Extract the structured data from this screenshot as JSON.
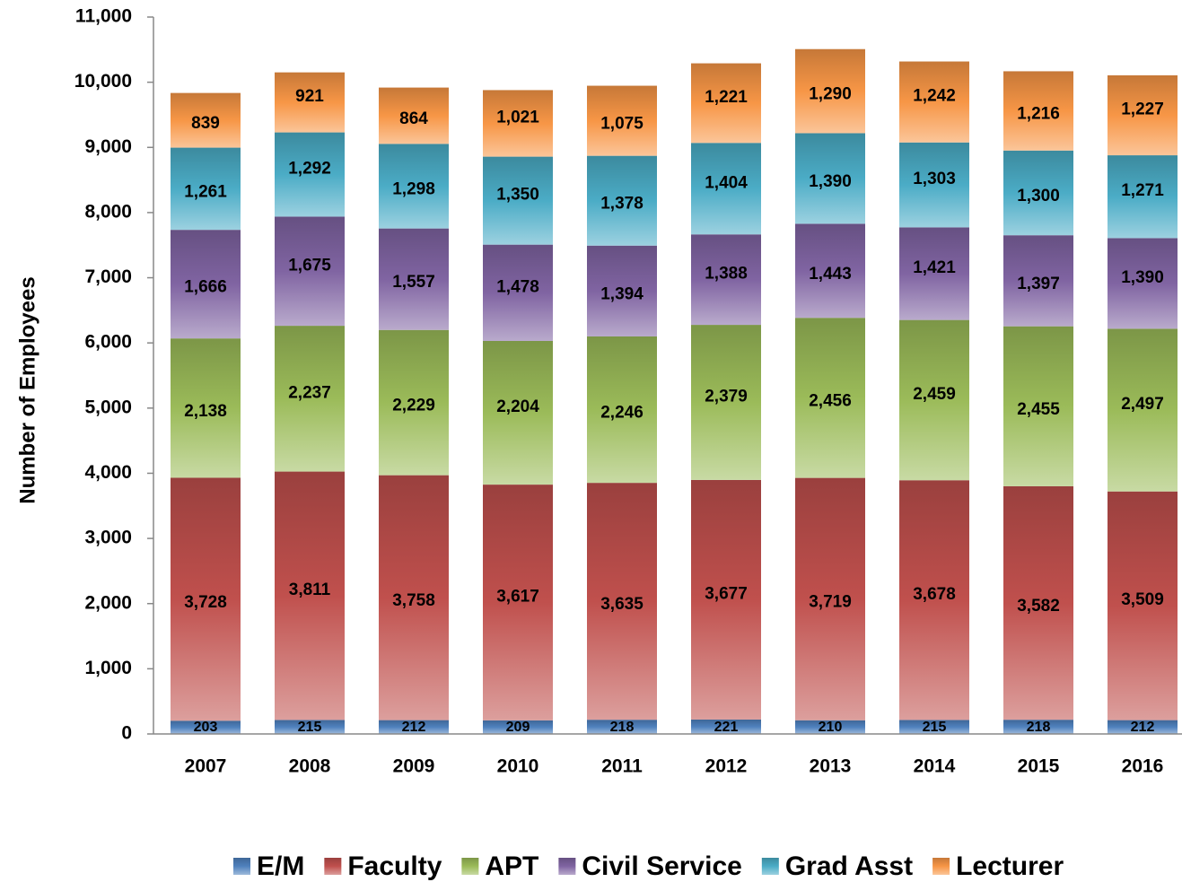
{
  "chart_data": {
    "type": "stacked_bar",
    "y_label": "Number of Employees",
    "categories": [
      "2007",
      "2008",
      "2009",
      "2010",
      "2011",
      "2012",
      "2013",
      "2014",
      "2015",
      "2016"
    ],
    "series": [
      {
        "name": "E/M",
        "color": "#4f81bd",
        "values": [
          203,
          215,
          212,
          209,
          218,
          221,
          210,
          215,
          218,
          212
        ]
      },
      {
        "name": "Faculty",
        "color": "#c0504d",
        "values": [
          3728,
          3811,
          3758,
          3617,
          3635,
          3677,
          3719,
          3678,
          3582,
          3509
        ],
        "value_labels": [
          "3,728",
          "3,811",
          "3,758",
          "3,617",
          "3,635",
          "3,677",
          "3,719",
          "3,678",
          "3,582",
          "3,509"
        ]
      },
      {
        "name": "APT",
        "color": "#9bbb59",
        "values": [
          2138,
          2237,
          2229,
          2204,
          2246,
          2379,
          2456,
          2459,
          2455,
          2497
        ],
        "value_labels": [
          "2,138",
          "2,237",
          "2,229",
          "2,204",
          "2,246",
          "2,379",
          "2,456",
          "2,459",
          "2,455",
          "2,497"
        ]
      },
      {
        "name": "Civil Service",
        "color": "#8064a2",
        "values": [
          1666,
          1675,
          1557,
          1478,
          1394,
          1388,
          1443,
          1421,
          1397,
          1390
        ],
        "value_labels": [
          "1,666",
          "1,675",
          "1,557",
          "1,478",
          "1,394",
          "1,388",
          "1,443",
          "1,421",
          "1,397",
          "1,390"
        ]
      },
      {
        "name": "Grad Asst",
        "color": "#4bacc6",
        "values": [
          1261,
          1292,
          1298,
          1350,
          1378,
          1404,
          1390,
          1303,
          1300,
          1271
        ],
        "value_labels": [
          "1,261",
          "1,292",
          "1,298",
          "1,350",
          "1,378",
          "1,404",
          "1,390",
          "1,303",
          "1,300",
          "1,271"
        ]
      },
      {
        "name": "Lecturer",
        "color": "#f79646",
        "values": [
          839,
          921,
          864,
          1021,
          1075,
          1221,
          1290,
          1242,
          1216,
          1227
        ],
        "value_labels": [
          "839",
          "921",
          "864",
          "1,021",
          "1,075",
          "1,221",
          "1,290",
          "1,242",
          "1,216",
          "1,227"
        ]
      }
    ],
    "ylim": [
      0,
      11000
    ],
    "yticks": [
      0,
      {
        "value": 1000,
        "label": "1,000"
      },
      {
        "value": 2000,
        "label": "2,000"
      },
      {
        "value": 3000,
        "label": "3,000"
      },
      {
        "value": 4000,
        "label": "4,000"
      },
      {
        "value": 5000,
        "label": "5,000"
      },
      {
        "value": 6000,
        "label": "6,000"
      },
      {
        "value": 7000,
        "label": "7,000"
      },
      {
        "value": 8000,
        "label": "8,000"
      },
      {
        "value": 9000,
        "label": "9,000"
      },
      {
        "value": 10000,
        "label": "10,000"
      },
      {
        "value": 11000,
        "label": "11,000"
      }
    ],
    "legend": "bottom"
  }
}
